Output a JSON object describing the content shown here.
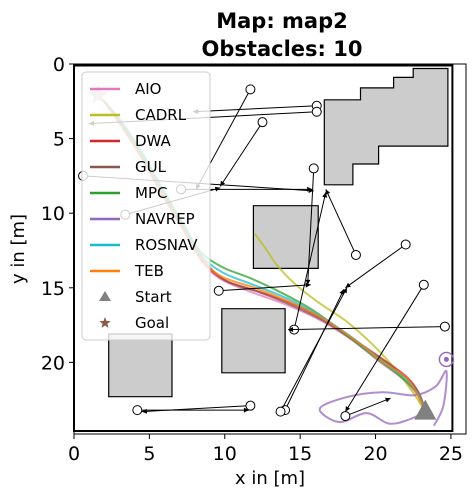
{
  "chart_data": {
    "type": "scatter",
    "title_line1": "Map: map2",
    "title_line2": "Obstacles: 10",
    "xlabel": "x in [m]",
    "ylabel": "y in [m]",
    "xlim": [
      0,
      26
    ],
    "ylim": [
      0,
      24.8
    ],
    "y_inverted": true,
    "grid": false,
    "legend_position": "upper-left",
    "xticks": [
      0,
      5,
      10,
      15,
      20,
      25
    ],
    "yticks": [
      0,
      5,
      10,
      15,
      20
    ],
    "map_border": [
      [
        0,
        0.1
      ],
      [
        25.1,
        0.1
      ],
      [
        25.1,
        24.6
      ],
      [
        0,
        24.6
      ]
    ],
    "obstacles": [
      [
        [
          16.6,
          2.4
        ],
        [
          19.0,
          2.4
        ],
        [
          19.0,
          1.6
        ],
        [
          21.2,
          1.6
        ],
        [
          21.2,
          0.9
        ],
        [
          22.5,
          0.9
        ],
        [
          22.5,
          0.3
        ],
        [
          24.8,
          0.3
        ],
        [
          24.8,
          5.5
        ],
        [
          20.2,
          5.5
        ],
        [
          20.2,
          6.7
        ],
        [
          18.5,
          6.7
        ],
        [
          18.5,
          8.1
        ],
        [
          16.6,
          8.1
        ]
      ],
      [
        [
          11.9,
          9.5
        ],
        [
          16.2,
          9.5
        ],
        [
          16.2,
          13.7
        ],
        [
          11.9,
          13.7
        ]
      ],
      [
        [
          9.8,
          16.4
        ],
        [
          14.0,
          16.4
        ],
        [
          14.0,
          20.7
        ],
        [
          9.8,
          20.7
        ]
      ],
      [
        [
          2.3,
          18.1
        ],
        [
          6.5,
          18.1
        ],
        [
          6.5,
          22.3
        ],
        [
          2.3,
          22.3
        ]
      ]
    ],
    "obstacle_arrows": [
      {
        "from": [
          11.7,
          1.7
        ],
        "to": [
          8.1,
          8.4
        ]
      },
      {
        "from": [
          12.5,
          3.9
        ],
        "to": [
          9.7,
          8.2
        ]
      },
      {
        "from": [
          16.1,
          2.8
        ],
        "to": [
          7.9,
          3.2
        ]
      },
      {
        "from": [
          16.1,
          3.2
        ],
        "to": [
          1.0,
          4.0
        ]
      },
      {
        "from": [
          15.9,
          7.0
        ],
        "to": [
          15.5,
          14.8
        ]
      },
      {
        "from": [
          0.6,
          7.5
        ],
        "to": [
          15.9,
          8.5
        ]
      },
      {
        "from": [
          3.4,
          10.1
        ],
        "to": [
          9.7,
          8.3
        ]
      },
      {
        "from": [
          7.1,
          8.4
        ],
        "to": [
          15.8,
          8.4
        ]
      },
      {
        "from": [
          18.7,
          12.8
        ],
        "to": [
          16.7,
          8.4
        ]
      },
      {
        "from": [
          9.6,
          15.2
        ],
        "to": [
          15.7,
          14.8
        ]
      },
      {
        "from": [
          22.0,
          12.1
        ],
        "to": [
          18.0,
          15.0
        ]
      },
      {
        "from": [
          14.6,
          17.8
        ],
        "to": [
          16.7,
          8.6
        ]
      },
      {
        "from": [
          24.6,
          17.6
        ],
        "to": [
          14.2,
          17.8
        ]
      },
      {
        "from": [
          23.2,
          14.8
        ],
        "to": [
          18.0,
          23.3
        ]
      },
      {
        "from": [
          14.0,
          23.2
        ],
        "to": [
          17.9,
          15.1
        ]
      },
      {
        "from": [
          13.7,
          23.3
        ],
        "to": [
          18.1,
          15.0
        ]
      },
      {
        "from": [
          4.2,
          23.2
        ],
        "to": [
          11.6,
          23.2
        ]
      },
      {
        "from": [
          11.7,
          22.9
        ],
        "to": [
          4.5,
          23.3
        ]
      },
      {
        "from": [
          18.0,
          23.6
        ],
        "to": [
          21.0,
          22.4
        ]
      }
    ],
    "legend": [
      "AIO",
      "CADRL",
      "DWA",
      "GUL",
      "MPC",
      "NAVREP",
      "ROSNAV",
      "TEB",
      "Start",
      "Goal"
    ],
    "series": [
      {
        "name": "AIO",
        "color": "#e377c2",
        "points": [
          [
            23.3,
            23.3
          ],
          [
            22.8,
            22.2
          ],
          [
            21.8,
            21.1
          ],
          [
            20.2,
            19.9
          ],
          [
            18.3,
            18.4
          ],
          [
            16.2,
            17.1
          ],
          [
            14.0,
            16.1
          ],
          [
            11.8,
            15.3
          ],
          [
            9.7,
            14.4
          ],
          [
            8.4,
            13.1
          ],
          [
            7.2,
            11.0
          ],
          [
            5.8,
            8.7
          ],
          [
            4.4,
            6.1
          ],
          [
            2.9,
            3.8
          ],
          [
            1.8,
            2.3
          ]
        ]
      },
      {
        "name": "CADRL",
        "color": "#bcbd22",
        "points": [
          [
            23.3,
            23.3
          ],
          [
            22.4,
            21.9
          ],
          [
            21.1,
            20.2
          ],
          [
            19.7,
            18.7
          ],
          [
            18.0,
            17.2
          ],
          [
            16.1,
            15.9
          ],
          [
            14.5,
            14.6
          ],
          [
            13.4,
            13.4
          ],
          [
            12.8,
            12.5
          ],
          [
            12.3,
            11.8
          ],
          [
            12.0,
            11.4
          ]
        ]
      },
      {
        "name": "DWA",
        "color": "#d62728",
        "points": [
          [
            23.3,
            23.3
          ],
          [
            22.9,
            22.1
          ],
          [
            22.1,
            21.0
          ],
          [
            20.5,
            19.8
          ],
          [
            18.6,
            18.5
          ],
          [
            16.5,
            17.1
          ],
          [
            14.3,
            16.0
          ],
          [
            12.1,
            15.2
          ],
          [
            10.0,
            14.5
          ],
          [
            8.6,
            13.3
          ],
          [
            7.5,
            11.4
          ],
          [
            6.2,
            9.2
          ],
          [
            4.8,
            6.8
          ],
          [
            3.3,
            4.3
          ],
          [
            2.0,
            2.5
          ]
        ]
      },
      {
        "name": "GUL",
        "color": "#8c564b",
        "points": [
          [
            23.3,
            23.3
          ],
          [
            22.9,
            22.2
          ],
          [
            22.2,
            21.2
          ],
          [
            20.7,
            20.0
          ],
          [
            18.8,
            18.7
          ],
          [
            16.7,
            17.3
          ],
          [
            14.5,
            16.2
          ],
          [
            12.3,
            15.3
          ],
          [
            10.2,
            14.6
          ],
          [
            8.8,
            13.4
          ],
          [
            7.7,
            11.6
          ],
          [
            6.4,
            9.4
          ],
          [
            5.0,
            7.0
          ],
          [
            3.5,
            4.5
          ],
          [
            2.1,
            2.6
          ]
        ]
      },
      {
        "name": "MPC",
        "color": "#2ca02c",
        "points": [
          [
            23.3,
            23.3
          ],
          [
            22.7,
            22.0
          ],
          [
            21.6,
            20.9
          ],
          [
            19.9,
            19.6
          ],
          [
            18.0,
            18.1
          ],
          [
            16.0,
            16.6
          ],
          [
            13.9,
            15.4
          ],
          [
            11.8,
            14.4
          ],
          [
            9.8,
            13.6
          ],
          [
            8.3,
            12.5
          ],
          [
            7.3,
            10.8
          ],
          [
            6.0,
            8.6
          ],
          [
            4.6,
            6.1
          ],
          [
            3.1,
            3.8
          ],
          [
            1.9,
            2.4
          ]
        ]
      },
      {
        "name": "NAVREP",
        "color": "#9467bd",
        "points": [
          [
            23.3,
            23.3
          ],
          [
            22.3,
            23.8
          ],
          [
            20.9,
            24.1
          ],
          [
            19.4,
            23.4
          ],
          [
            17.6,
            24.0
          ],
          [
            16.3,
            23.1
          ],
          [
            18.2,
            22.3
          ],
          [
            20.5,
            22.0
          ],
          [
            22.6,
            22.2
          ],
          [
            24.0,
            21.6
          ],
          [
            24.7,
            20.6
          ],
          [
            24.5,
            22.9
          ],
          [
            23.9,
            24.2
          ]
        ]
      },
      {
        "name": "ROSNAV",
        "color": "#17becf",
        "points": [
          [
            23.3,
            23.3
          ],
          [
            22.8,
            22.1
          ],
          [
            21.9,
            21.0
          ],
          [
            20.3,
            19.8
          ],
          [
            18.4,
            18.3
          ],
          [
            16.3,
            16.9
          ],
          [
            14.1,
            15.7
          ],
          [
            11.9,
            14.8
          ],
          [
            9.9,
            14.0
          ],
          [
            8.5,
            12.9
          ],
          [
            7.4,
            11.1
          ],
          [
            6.1,
            8.9
          ],
          [
            4.7,
            6.4
          ],
          [
            3.2,
            4.0
          ],
          [
            1.9,
            2.4
          ]
        ]
      },
      {
        "name": "TEB",
        "color": "#ff7f0e",
        "points": [
          [
            23.3,
            23.3
          ],
          [
            22.8,
            22.2
          ],
          [
            22.0,
            21.0
          ],
          [
            20.4,
            19.9
          ],
          [
            18.5,
            18.4
          ],
          [
            16.4,
            17.0
          ],
          [
            14.2,
            15.9
          ],
          [
            12.0,
            15.0
          ],
          [
            9.9,
            14.3
          ],
          [
            8.5,
            13.2
          ],
          [
            7.3,
            11.2
          ],
          [
            6.0,
            9.0
          ],
          [
            4.6,
            6.5
          ],
          [
            3.1,
            4.1
          ],
          [
            1.9,
            2.4
          ]
        ]
      }
    ],
    "start": {
      "x": 23.3,
      "y": 23.3,
      "color": "#808080"
    },
    "goal": {
      "x": 1.6,
      "y": 2.1,
      "color": "#d4b8b8"
    },
    "goal_circle": {
      "x": 24.7,
      "y": 19.8,
      "color": "#9467bd"
    }
  }
}
